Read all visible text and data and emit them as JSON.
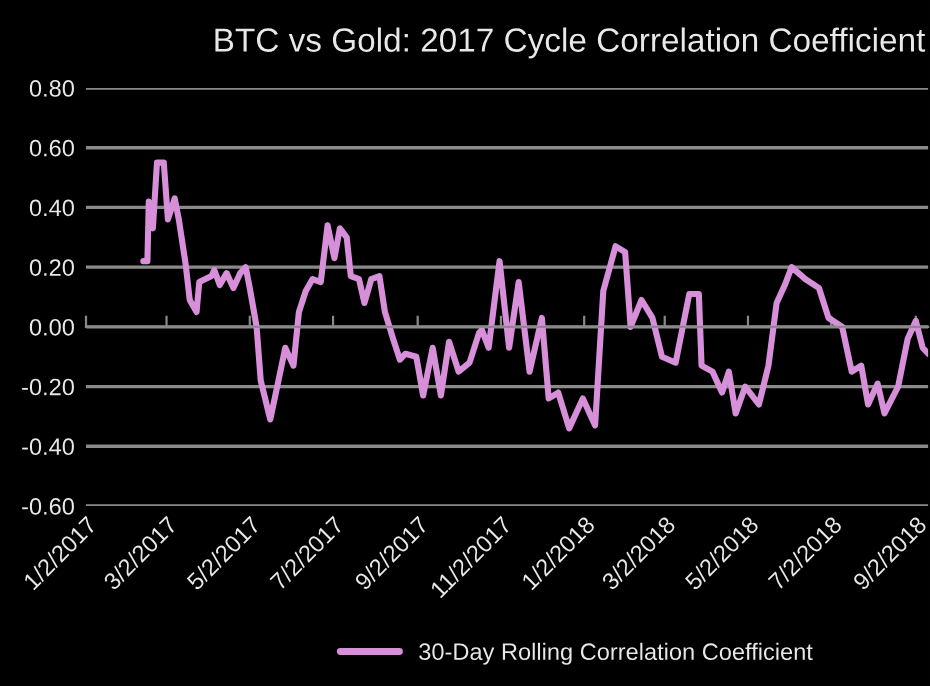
{
  "chart_data": {
    "type": "line",
    "title": "BTC vs Gold: 2017 Cycle Correlation Coefficient",
    "x": [
      "2017-02-13",
      "2017-02-16",
      "2017-02-17",
      "2017-02-20",
      "2017-02-23",
      "2017-02-28",
      "2017-03-03",
      "2017-03-08",
      "2017-03-11",
      "2017-03-16",
      "2017-03-19",
      "2017-03-24",
      "2017-03-26",
      "2017-04-04",
      "2017-04-06",
      "2017-04-10",
      "2017-04-15",
      "2017-04-20",
      "2017-04-25",
      "2017-04-29",
      "2017-05-02",
      "2017-05-07",
      "2017-05-10",
      "2017-05-17",
      "2017-05-23",
      "2017-05-28",
      "2017-06-03",
      "2017-06-07",
      "2017-06-12",
      "2017-06-17",
      "2017-06-23",
      "2017-06-28",
      "2017-07-03",
      "2017-07-07",
      "2017-07-12",
      "2017-07-15",
      "2017-07-21",
      "2017-07-25",
      "2017-07-30",
      "2017-08-05",
      "2017-08-09",
      "2017-08-15",
      "2017-08-20",
      "2017-08-24",
      "2017-09-01",
      "2017-09-06",
      "2017-09-13",
      "2017-09-19",
      "2017-09-25",
      "2017-10-02",
      "2017-10-10",
      "2017-10-17",
      "2017-10-19",
      "2017-10-24",
      "2017-11-01",
      "2017-11-08",
      "2017-11-15",
      "2017-11-23",
      "2017-12-02",
      "2017-12-07",
      "2017-12-14",
      "2017-12-22",
      "2018-01-01",
      "2018-01-10",
      "2018-01-16",
      "2018-01-25",
      "2018-02-01",
      "2018-02-05",
      "2018-02-13",
      "2018-02-21",
      "2018-02-28",
      "2018-03-10",
      "2018-03-20",
      "2018-03-27",
      "2018-03-29",
      "2018-04-06",
      "2018-04-13",
      "2018-04-18",
      "2018-04-23",
      "2018-04-30",
      "2018-05-10",
      "2018-05-17",
      "2018-05-23",
      "2018-05-29",
      "2018-06-03",
      "2018-06-13",
      "2018-06-23",
      "2018-06-30",
      "2018-07-10",
      "2018-07-17",
      "2018-07-24",
      "2018-07-29",
      "2018-08-05",
      "2018-08-10",
      "2018-08-20",
      "2018-08-27",
      "2018-09-02",
      "2018-09-07",
      "2018-09-11"
    ],
    "series": [
      {
        "name": "30-Day Rolling Correlation Coefficient",
        "color": "#d68fd8",
        "values": [
          0.22,
          0.22,
          0.42,
          0.33,
          0.55,
          0.55,
          0.36,
          0.43,
          0.36,
          0.21,
          0.09,
          0.05,
          0.15,
          0.17,
          0.19,
          0.14,
          0.18,
          0.13,
          0.18,
          0.2,
          0.13,
          0.0,
          -0.18,
          -0.31,
          -0.18,
          -0.07,
          -0.13,
          0.05,
          0.12,
          0.16,
          0.15,
          0.34,
          0.23,
          0.33,
          0.3,
          0.17,
          0.16,
          0.08,
          0.16,
          0.17,
          0.05,
          -0.04,
          -0.11,
          -0.09,
          -0.1,
          -0.23,
          -0.07,
          -0.23,
          -0.05,
          -0.15,
          -0.12,
          -0.02,
          -0.01,
          -0.07,
          0.22,
          -0.07,
          0.15,
          -0.15,
          0.03,
          -0.24,
          -0.22,
          -0.34,
          -0.24,
          -0.33,
          0.12,
          0.27,
          0.25,
          0.0,
          0.09,
          0.03,
          -0.1,
          -0.12,
          0.11,
          0.11,
          -0.13,
          -0.15,
          -0.22,
          -0.15,
          -0.29,
          -0.2,
          -0.26,
          -0.13,
          0.08,
          0.14,
          0.2,
          0.16,
          0.13,
          0.03,
          0.0,
          -0.15,
          -0.13,
          -0.26,
          -0.19,
          -0.29,
          -0.2,
          -0.04,
          0.02,
          -0.07,
          -0.09
        ]
      }
    ],
    "xlim": [
      "2017-01-02",
      "2018-09-11"
    ],
    "xticks": [
      {
        "value": "2017-01-02",
        "label": "1/2/2017"
      },
      {
        "value": "2017-03-02",
        "label": "3/2/2017"
      },
      {
        "value": "2017-05-02",
        "label": "5/2/2017"
      },
      {
        "value": "2017-07-02",
        "label": "7/2/2017"
      },
      {
        "value": "2017-09-02",
        "label": "9/2/2017"
      },
      {
        "value": "2017-11-02",
        "label": "11/2/2017"
      },
      {
        "value": "2018-01-02",
        "label": "1/2/2018"
      },
      {
        "value": "2018-03-02",
        "label": "3/2/2018"
      },
      {
        "value": "2018-05-02",
        "label": "5/2/2018"
      },
      {
        "value": "2018-07-02",
        "label": "7/2/2018"
      },
      {
        "value": "2018-09-02",
        "label": "9/2/2018"
      }
    ],
    "ylim": [
      -0.6,
      0.8
    ],
    "yticks": [
      {
        "value": -0.6,
        "label": "-0.60"
      },
      {
        "value": -0.4,
        "label": "-0.40"
      },
      {
        "value": -0.2,
        "label": "-0.20"
      },
      {
        "value": 0.0,
        "label": "0.00"
      },
      {
        "value": 0.2,
        "label": "0.20"
      },
      {
        "value": 0.4,
        "label": "0.40"
      },
      {
        "value": 0.6,
        "label": "0.60"
      },
      {
        "value": 0.8,
        "label": "0.80"
      }
    ],
    "grid": "y",
    "legend": "bottom",
    "marker": "none",
    "line_style": "solid"
  }
}
